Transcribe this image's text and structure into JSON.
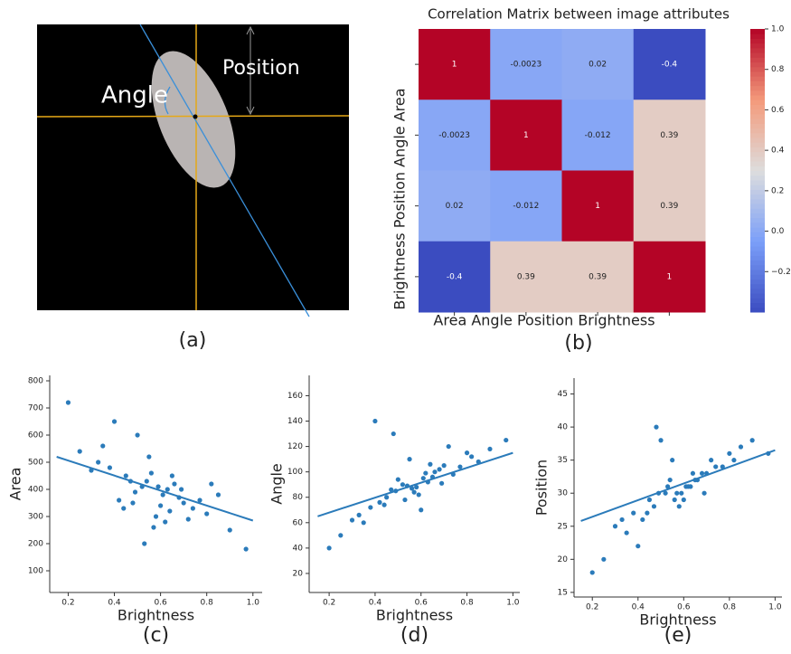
{
  "diagram": {
    "labels": [
      "Angle",
      "Position"
    ],
    "caption": "(a)"
  },
  "chart_data": [
    {
      "type": "heatmap",
      "title": "Correlation Matrix between image attributes",
      "x_label": "Area Angle Position Brightness",
      "y_label": "Brightness Position Angle Area",
      "values": [
        [
          1,
          -0.0023,
          0.02,
          -0.4
        ],
        [
          -0.0023,
          1,
          -0.012,
          0.39
        ],
        [
          0.02,
          -0.012,
          1,
          0.39
        ],
        [
          -0.4,
          0.39,
          0.39,
          1
        ]
      ],
      "colormap": "coolwarm",
      "clim": [
        -0.4,
        1.0
      ],
      "cticks": [
        {
          "value": 1.0,
          "label": "1.0"
        },
        0.8,
        0.6,
        0.4,
        0.2,
        {
          "value": 0,
          "label": "0.0"
        },
        {
          "value": -0.2,
          "label": "−0.2"
        }
      ],
      "caption": "(b)"
    },
    {
      "type": "scatter",
      "x_label": "Brightness",
      "y_label": "Area",
      "color": "#2b7bba",
      "caption": "(c)",
      "x": [
        0.52,
        0.61,
        0.45,
        0.7,
        0.58,
        0.38,
        0.66,
        0.49,
        0.55,
        0.74,
        0.42,
        0.63,
        0.8,
        0.35,
        0.57,
        0.68,
        0.5,
        0.6,
        0.47,
        0.72,
        0.3,
        0.85,
        0.53,
        0.65,
        0.4,
        0.77,
        0.59,
        0.44,
        0.9,
        0.25,
        0.62,
        0.56,
        0.48,
        0.69,
        0.97,
        0.2,
        0.54,
        0.64,
        0.82,
        0.33
      ],
      "y": [
        410,
        380,
        450,
        350,
        300,
        480,
        420,
        390,
        520,
        330,
        360,
        400,
        310,
        560,
        260,
        370,
        600,
        340,
        430,
        290,
        470,
        380,
        200,
        450,
        650,
        360,
        410,
        330,
        250,
        540,
        280,
        460,
        350,
        400,
        180,
        720,
        430,
        320,
        420,
        500
      ],
      "trend": {
        "x": [
          0.15,
          1.0
        ],
        "y": [
          520,
          285
        ]
      },
      "xlim": [
        0.12,
        1.04
      ],
      "ylim": [
        20,
        820
      ],
      "xticks": [
        0.2,
        0.4,
        0.6,
        0.8,
        {
          "value": 1.0,
          "label": "1.0"
        }
      ],
      "yticks": [
        100,
        200,
        300,
        400,
        500,
        600,
        700,
        800
      ]
    },
    {
      "type": "scatter",
      "x_label": "Brightness",
      "y_label": "Angle",
      "color": "#2b7bba",
      "caption": "(d)",
      "x": [
        0.52,
        0.61,
        0.45,
        0.7,
        0.58,
        0.38,
        0.66,
        0.49,
        0.55,
        0.74,
        0.42,
        0.63,
        0.8,
        0.35,
        0.57,
        0.68,
        0.5,
        0.6,
        0.47,
        0.72,
        0.3,
        0.85,
        0.53,
        0.65,
        0.4,
        0.77,
        0.59,
        0.44,
        0.9,
        0.25,
        0.62,
        0.56,
        0.48,
        0.69,
        0.97,
        0.2,
        0.54,
        0.64,
        0.82,
        0.33
      ],
      "y": [
        90,
        95,
        80,
        105,
        88,
        72,
        100,
        85,
        110,
        98,
        76,
        92,
        115,
        60,
        84,
        102,
        94,
        70,
        86,
        120,
        62,
        108,
        78,
        96,
        140,
        104,
        82,
        74,
        118,
        50,
        99,
        87,
        130,
        91,
        125,
        40,
        89,
        106,
        112,
        66
      ],
      "trend": {
        "x": [
          0.15,
          1.0
        ],
        "y": [
          65,
          115
        ]
      },
      "xlim": [
        0.113,
        1.03
      ],
      "ylim": [
        5,
        176
      ],
      "xticks": [
        0.2,
        0.4,
        0.6,
        0.8,
        {
          "value": 1.0,
          "label": "1.0"
        }
      ],
      "yticks": [
        20,
        40,
        60,
        80,
        100,
        120,
        140,
        160
      ]
    },
    {
      "type": "scatter",
      "x_label": "Brightness",
      "y_label": "Position",
      "color": "#2b7bba",
      "caption": "(e)",
      "x": [
        0.52,
        0.61,
        0.45,
        0.7,
        0.58,
        0.38,
        0.66,
        0.49,
        0.55,
        0.74,
        0.42,
        0.63,
        0.8,
        0.35,
        0.57,
        0.68,
        0.5,
        0.6,
        0.47,
        0.72,
        0.3,
        0.85,
        0.53,
        0.65,
        0.4,
        0.77,
        0.59,
        0.44,
        0.9,
        0.25,
        0.62,
        0.56,
        0.48,
        0.69,
        0.97,
        0.2,
        0.54,
        0.64,
        0.82,
        0.33
      ],
      "y": [
        30,
        31,
        29,
        33,
        28,
        27,
        32,
        30,
        35,
        34,
        26,
        31,
        36,
        24,
        30,
        33,
        38,
        29,
        28,
        35,
        25,
        37,
        31,
        32,
        22,
        34,
        30,
        27,
        38,
        20,
        31,
        29,
        40,
        30,
        36,
        18,
        32,
        33,
        35,
        26
      ],
      "trend": {
        "x": [
          0.15,
          1.0
        ],
        "y": [
          25.8,
          36.5
        ]
      },
      "xlim": [
        0.12,
        1.03
      ],
      "ylim": [
        14.3,
        47.4
      ],
      "xticks": [
        0.2,
        0.4,
        0.6,
        0.8,
        {
          "value": 1.0,
          "label": "1.0"
        }
      ],
      "yticks": [
        15,
        20,
        25,
        30,
        35,
        40,
        45
      ]
    }
  ]
}
